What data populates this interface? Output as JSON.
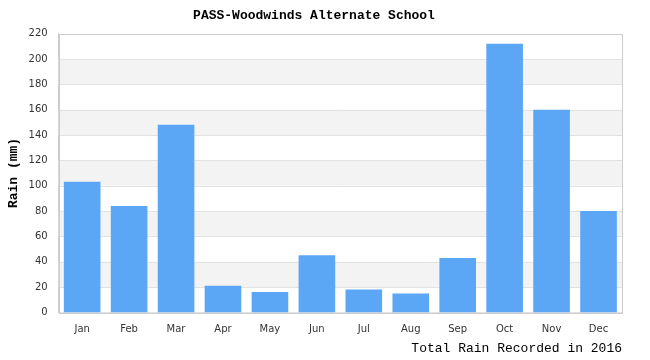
{
  "chart_data": {
    "type": "bar",
    "title": "PASS-Woodwinds Alternate School",
    "x_label": "Total Rain Recorded in 2016",
    "y_label": "Rain (mm)",
    "categories": [
      "Jan",
      "Feb",
      "Mar",
      "Apr",
      "May",
      "Jun",
      "Jul",
      "Aug",
      "Sep",
      "Oct",
      "Nov",
      "Dec"
    ],
    "values": [
      103,
      84,
      148,
      21,
      16,
      45,
      18,
      15,
      43,
      212,
      160,
      80
    ],
    "color": "#5ba6f5",
    "ylim": [
      0,
      220
    ],
    "yticks": [
      0,
      20,
      40,
      60,
      80,
      100,
      120,
      140,
      160,
      180,
      200,
      220
    ],
    "grid": true
  }
}
